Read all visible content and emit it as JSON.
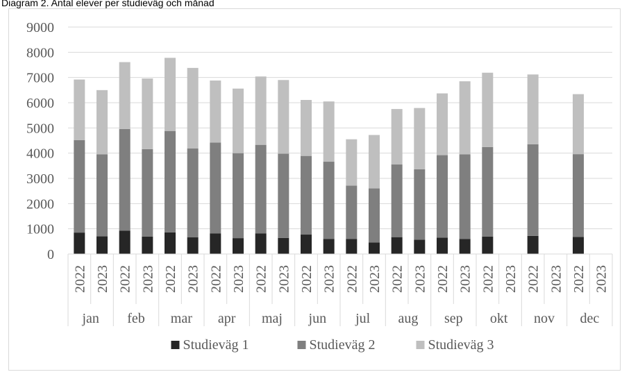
{
  "title": "Diagram 2. Antal elever per studieväg och månad",
  "colors": {
    "series1": "#262626",
    "series2": "#7f7f7f",
    "series3": "#bfbfbf",
    "grid": "#d9d9d9",
    "text": "#595959"
  },
  "chart_data": {
    "type": "bar",
    "stacked": true,
    "ylim": [
      0,
      9000
    ],
    "yticks": [
      0,
      1000,
      2000,
      3000,
      4000,
      5000,
      6000,
      7000,
      8000,
      9000
    ],
    "grid": true,
    "legend_position": "bottom",
    "groups": [
      "jan",
      "feb",
      "mar",
      "apr",
      "maj",
      "jun",
      "jul",
      "aug",
      "sep",
      "okt",
      "nov",
      "dec"
    ],
    "years": [
      "2022",
      "2023"
    ],
    "series": [
      {
        "name": "Studieväg 1",
        "values": [
          850,
          700,
          930,
          690,
          860,
          660,
          820,
          630,
          820,
          640,
          770,
          600,
          600,
          460,
          670,
          570,
          650,
          600,
          690,
          null,
          720,
          null,
          680,
          null
        ]
      },
      {
        "name": "Studieväg 2",
        "values": [
          3670,
          3250,
          4030,
          3470,
          4020,
          3530,
          3600,
          3370,
          3510,
          3340,
          3120,
          3060,
          2110,
          2140,
          2880,
          2790,
          3270,
          3350,
          3550,
          null,
          3630,
          null,
          3280,
          null
        ]
      },
      {
        "name": "Studieväg 3",
        "values": [
          2400,
          2550,
          2650,
          2800,
          2900,
          3190,
          2460,
          2560,
          2710,
          2920,
          2220,
          2390,
          1840,
          2120,
          2200,
          2430,
          2450,
          2900,
          2950,
          null,
          2770,
          null,
          2380,
          null
        ]
      }
    ]
  }
}
